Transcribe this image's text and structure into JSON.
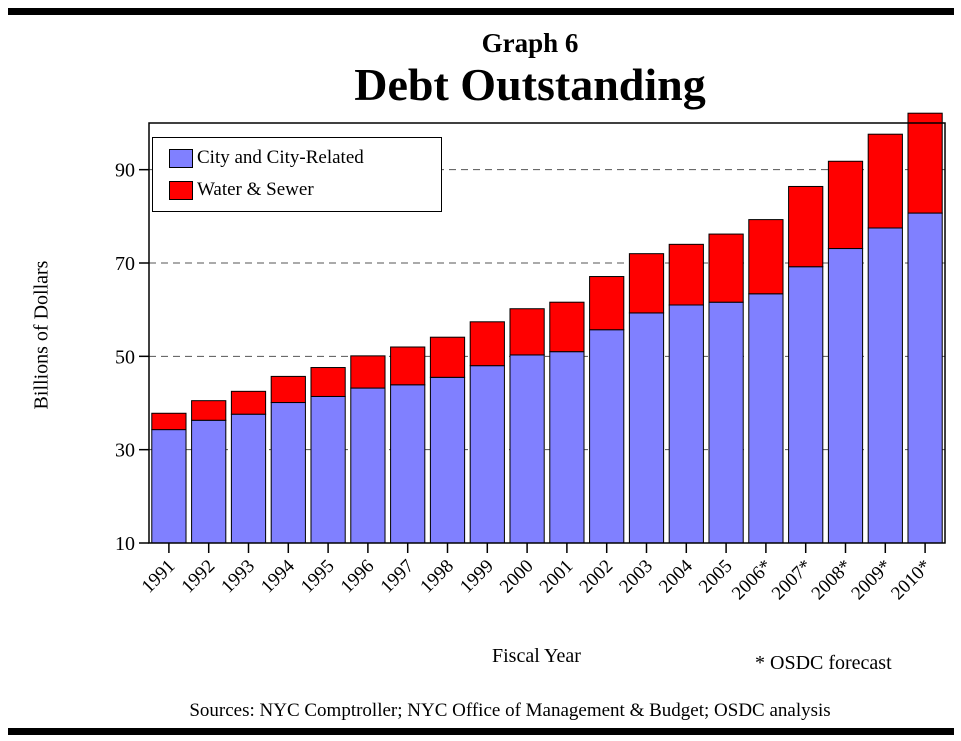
{
  "graph_label": "Graph 6",
  "title": "Debt Outstanding",
  "footnote": "* OSDC forecast",
  "source": "Sources: NYC Comptroller; NYC Office of Management & Budget; OSDC analysis",
  "colors": {
    "city": "#8080ff",
    "water": "#ff0000"
  },
  "chart_data": {
    "type": "bar",
    "stacked": true,
    "xlabel": "Fiscal Year",
    "ylabel": "Billions of Dollars",
    "ylim": [
      10,
      100
    ],
    "yticks": [
      10,
      30,
      50,
      70,
      90
    ],
    "grid": "dashed horizontal at 30, 50, 70, 90",
    "legend_position": "top-left",
    "categories": [
      "1991",
      "1992",
      "1993",
      "1994",
      "1995",
      "1996",
      "1997",
      "1998",
      "1999",
      "2000",
      "2001",
      "2002",
      "2003",
      "2004",
      "2005",
      "2006*",
      "2007*",
      "2008*",
      "2009*",
      "2010*"
    ],
    "series": [
      {
        "name": "City and City-Related",
        "values": [
          24.3,
          26.3,
          27.6,
          30.1,
          31.4,
          33.2,
          33.9,
          35.5,
          38.0,
          40.3,
          41.0,
          45.7,
          49.3,
          51.0,
          51.6,
          53.4,
          59.2,
          63.1,
          67.5,
          70.7
        ]
      },
      {
        "name": "Water & Sewer",
        "values": [
          3.5,
          4.2,
          4.9,
          5.6,
          6.2,
          6.9,
          8.1,
          8.6,
          9.4,
          9.9,
          10.6,
          11.4,
          12.7,
          13.0,
          14.6,
          15.9,
          17.2,
          18.7,
          20.1,
          21.4
        ]
      }
    ]
  }
}
